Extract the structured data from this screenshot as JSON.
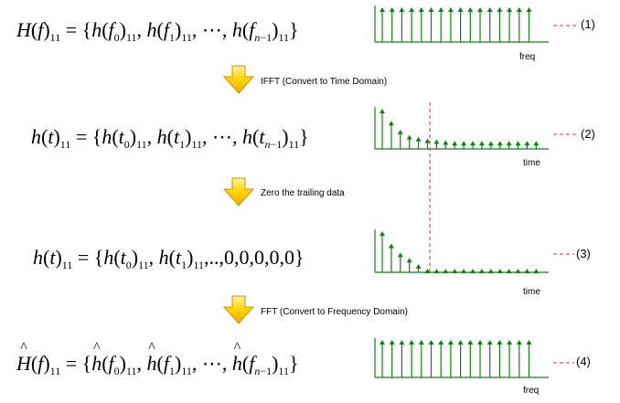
{
  "steps": [
    {
      "label": "IFFT  (Convert to Time Domain)"
    },
    {
      "label": "Zero the trailing data"
    },
    {
      "label": "FFT  (Convert to Frequency Domain)"
    }
  ],
  "rows": [
    {
      "axis_label": "freq",
      "number": "(1)",
      "amplitudes": [
        1,
        1,
        1,
        1,
        1,
        1,
        1,
        1,
        1,
        1,
        1,
        1,
        1,
        1,
        1,
        1
      ]
    },
    {
      "axis_label": "time",
      "number": "(2)",
      "amplitudes": [
        1,
        0.7,
        0.48,
        0.35,
        0.3,
        0.26,
        0.24,
        0.22,
        0.2,
        0.2,
        0.2,
        0.2,
        0.2,
        0.2,
        0.2,
        0.2,
        0.2,
        0.2
      ]
    },
    {
      "axis_label": "time",
      "number": "(3)",
      "amplitudes": [
        1,
        0.7,
        0.48,
        0.35,
        0.2,
        0,
        0,
        0,
        0,
        0,
        0,
        0,
        0,
        0,
        0,
        0,
        0,
        0
      ]
    },
    {
      "axis_label": "freq",
      "number": "(4)",
      "amplitudes": [
        1,
        1,
        1,
        1,
        1,
        1,
        1,
        1,
        1,
        1,
        1,
        1,
        1,
        1,
        1,
        1
      ]
    }
  ],
  "colors": {
    "stem": "#148014",
    "dashed_marker": "#dd3322",
    "arrow": "#f5c400"
  }
}
